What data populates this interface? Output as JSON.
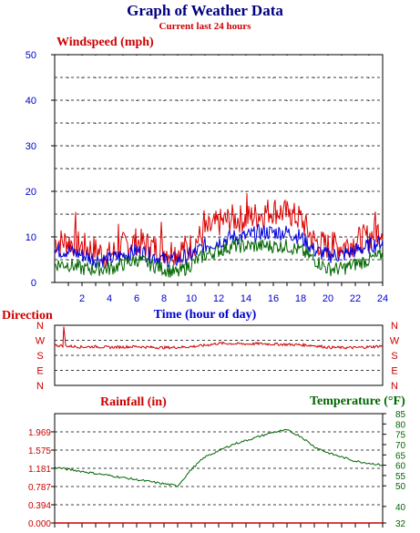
{
  "title": "Graph of Weather Data",
  "subtitle": "Current last 24 hours",
  "colors": {
    "axis_blue": "#0000cc",
    "gust": "#dd0000",
    "avg": "#0000dd",
    "low": "#006600",
    "direction": "#cc0000",
    "rainfall": "#cc0000",
    "temperature": "#006600"
  },
  "chart_data": [
    {
      "type": "line",
      "title": "",
      "ylabel": "Windspeed (mph)",
      "xlabel": "Time (hour of day)",
      "xlim": [
        0,
        24
      ],
      "ylim": [
        0,
        50
      ],
      "y_ticks": [
        "0",
        "10",
        "20",
        "30",
        "40",
        "50"
      ],
      "x_ticks": [
        "2",
        "4",
        "6",
        "8",
        "10",
        "12",
        "14",
        "16",
        "18",
        "20",
        "22",
        "24"
      ],
      "grid": true,
      "x": [
        0,
        1,
        2,
        3,
        4,
        5,
        6,
        7,
        8,
        9,
        10,
        11,
        12,
        13,
        14,
        15,
        16,
        17,
        18,
        19,
        20,
        21,
        22,
        23,
        24
      ],
      "series": [
        {
          "values": [
            9,
            9,
            8,
            7,
            6,
            8,
            9,
            8,
            7,
            7,
            8,
            11,
            13,
            14,
            14,
            15,
            16,
            15,
            14,
            9,
            8,
            8,
            9,
            10,
            12
          ]
        },
        {
          "values": [
            7,
            7,
            6,
            5,
            5,
            6,
            7,
            6,
            5,
            5,
            6,
            8,
            9,
            10,
            10,
            11,
            11,
            11,
            10,
            7,
            6,
            6,
            7,
            8,
            9
          ]
        },
        {
          "values": [
            4,
            4,
            3,
            3,
            3,
            4,
            5,
            4,
            3,
            2,
            4,
            6,
            7,
            8,
            8,
            8,
            8,
            8,
            7,
            5,
            3,
            3,
            4,
            5,
            6
          ]
        }
      ]
    },
    {
      "type": "line",
      "title": "",
      "ylabel": "Direction",
      "y_ticks": [
        "N",
        "W",
        "S",
        "E",
        "N"
      ],
      "xlim": [
        0,
        24
      ],
      "x": [
        0,
        1,
        2,
        3,
        4,
        5,
        6,
        7,
        8,
        9,
        10,
        11,
        12,
        13,
        14,
        15,
        16,
        17,
        18,
        19,
        20,
        21,
        22,
        23,
        24
      ],
      "series": [
        {
          "values": [
            240,
            235,
            230,
            232,
            228,
            230,
            233,
            228,
            226,
            228,
            232,
            240,
            252,
            250,
            248,
            250,
            247,
            245,
            243,
            238,
            228,
            226,
            226,
            230,
            236
          ]
        }
      ]
    },
    {
      "type": "line",
      "title": "",
      "ylabel": "Rainfall (in)",
      "ylim": [
        0,
        2.362
      ],
      "y_ticks": [
        "0.000",
        "0.394",
        "0.787",
        "1.181",
        "1.575",
        "1.969"
      ],
      "xlim": [
        0,
        24
      ],
      "x": [
        0,
        24
      ],
      "series": [
        {
          "values": [
            0,
            0
          ]
        }
      ]
    },
    {
      "type": "line",
      "title": "",
      "ylabel": "Temperature (°F)",
      "ylim": [
        32,
        85
      ],
      "y_ticks": [
        "32",
        "40",
        "50",
        "55",
        "60",
        "65",
        "70",
        "75",
        "80",
        "85"
      ],
      "xlim": [
        0,
        24
      ],
      "x": [
        0,
        1,
        2,
        3,
        4,
        5,
        6,
        7,
        8,
        9,
        10,
        11,
        12,
        13,
        14,
        15,
        16,
        17,
        18,
        19,
        20,
        21,
        22,
        23,
        24
      ],
      "series": [
        {
          "values": [
            59,
            58,
            57,
            56,
            55,
            54,
            53,
            52,
            51,
            50,
            58,
            64,
            67,
            70,
            72,
            74,
            76,
            77,
            74,
            69,
            66,
            64,
            62,
            61,
            60
          ]
        }
      ]
    }
  ]
}
